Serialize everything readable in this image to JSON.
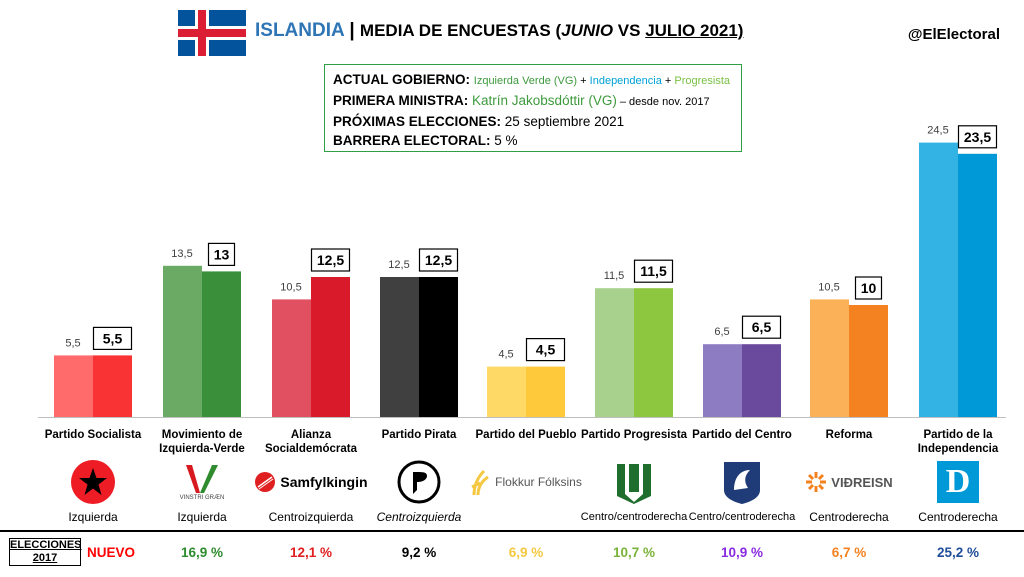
{
  "header": {
    "country": "ISLANDIA",
    "separator": "|",
    "subtitle_prefix": "MEDIA DE ENCUESTAS (",
    "month1": "JUNIO",
    "vs": " VS ",
    "month2": "JULIO 2021)",
    "handle": "@ElElectoral"
  },
  "info": {
    "gov_label": "ACTUAL GOBIERNO:",
    "gov_p1": "Izquierda Verde (VG)",
    "gov_plus1": " + ",
    "gov_p2": "Independencia",
    "gov_plus2": " + ",
    "gov_p3": "Progresista",
    "pm_label": "PRIMERA MINISTRA:",
    "pm_name": "Katrín Jakobsdóttir (VG)",
    "pm_since": " – desde nov. 2017",
    "next_label": "PRÓXIMAS ELECCIONES:",
    "next_date": "25 septiembre 2021",
    "barrier_label": "BARRERA ELECTORAL:",
    "barrier_value": "5 %"
  },
  "chart_data": {
    "type": "bar",
    "categories": [
      "Partido Socialista",
      "Movimiento de Izquierda-Verde",
      "Alianza Socialdemócrata",
      "Partido Pirata",
      "Partido del Pueblo",
      "Partido Progresista",
      "Partido del Centro",
      "Reforma",
      "Partido de la Independencia"
    ],
    "series": [
      {
        "values": [
          5.5,
          13.5,
          10.5,
          12.5,
          4.5,
          11.5,
          6.5,
          10.5,
          24.5
        ]
      },
      {
        "values": [
          5.5,
          13,
          12.5,
          12.5,
          4.5,
          11.5,
          6.5,
          10,
          23.5
        ]
      }
    ],
    "labels_june": [
      "5,5",
      "13,5",
      "10,5",
      "12,5",
      "4,5",
      "11,5",
      "6,5",
      "10,5",
      "24,5"
    ],
    "labels_july": [
      "5,5",
      "13",
      "12,5",
      "12,5",
      "4,5",
      "11,5",
      "6,5",
      "10",
      "23,5"
    ],
    "colors_june": [
      "#ff6b6b",
      "#6aaa64",
      "#e05060",
      "#404040",
      "#ffd966",
      "#a9d18e",
      "#8e7cc3",
      "#fbb157",
      "#33b3e3"
    ],
    "colors_july": [
      "#f93333",
      "#3a8f3a",
      "#d91a2a",
      "#000000",
      "#ffc93c",
      "#8dc63f",
      "#6a4a9c",
      "#f58220",
      "#0099d8"
    ],
    "ylim": [
      0,
      26
    ],
    "grid": false,
    "legend": "none"
  },
  "parties": [
    {
      "label_lines": [
        "Partido Socialista"
      ],
      "ideology": "Izquierda",
      "logo_text": "",
      "election2017": "NUEVO",
      "el_color": "#ff0000"
    },
    {
      "label_lines": [
        "Movimiento de",
        "Izquierda-Verde"
      ],
      "ideology": "Izquierda",
      "logo_text": "VINSTRI GRÆN",
      "election2017": "16,9 %",
      "el_color": "#2e8b2e"
    },
    {
      "label_lines": [
        "Alianza",
        "Socialdemócrata"
      ],
      "ideology": "Centroizquierda",
      "logo_text": "Samfylkingin",
      "election2017": "12,1 %",
      "el_color": "#e02020"
    },
    {
      "label_lines": [
        "Partido Pirata"
      ],
      "ideology": "Centroizquierda",
      "logo_text": "",
      "election2017": "9,2 %",
      "el_color": "#000000"
    },
    {
      "label_lines": [
        "Partido del Pueblo"
      ],
      "ideology": "",
      "logo_text": "Flokkur Fólksins",
      "election2017": "6,9 %",
      "el_color": "#f5c842"
    },
    {
      "label_lines": [
        "Partido Progresista"
      ],
      "ideology": "Centro/centroderecha",
      "logo_text": "",
      "election2017": "10,7 %",
      "el_color": "#7ab33a"
    },
    {
      "label_lines": [
        "Partido del Centro"
      ],
      "ideology": "Centro/centroderecha",
      "logo_text": "",
      "election2017": "10,9 %",
      "el_color": "#8a2be2"
    },
    {
      "label_lines": [
        "Reforma"
      ],
      "ideology": "Centroderecha",
      "logo_text": "VIÐREISN",
      "election2017": "6,7 %",
      "el_color": "#f58220"
    },
    {
      "label_lines": [
        "Partido de la",
        "Independencia"
      ],
      "ideology": "Centroderecha",
      "logo_text": "D",
      "election2017": "25,2 %",
      "el_color": "#1f4e9a"
    }
  ],
  "elections": {
    "label_line1": "ELECCIONES",
    "label_line2": "2017"
  },
  "colors": {
    "title_blue": "#2e75b6",
    "box_border": "#2f9e44"
  }
}
